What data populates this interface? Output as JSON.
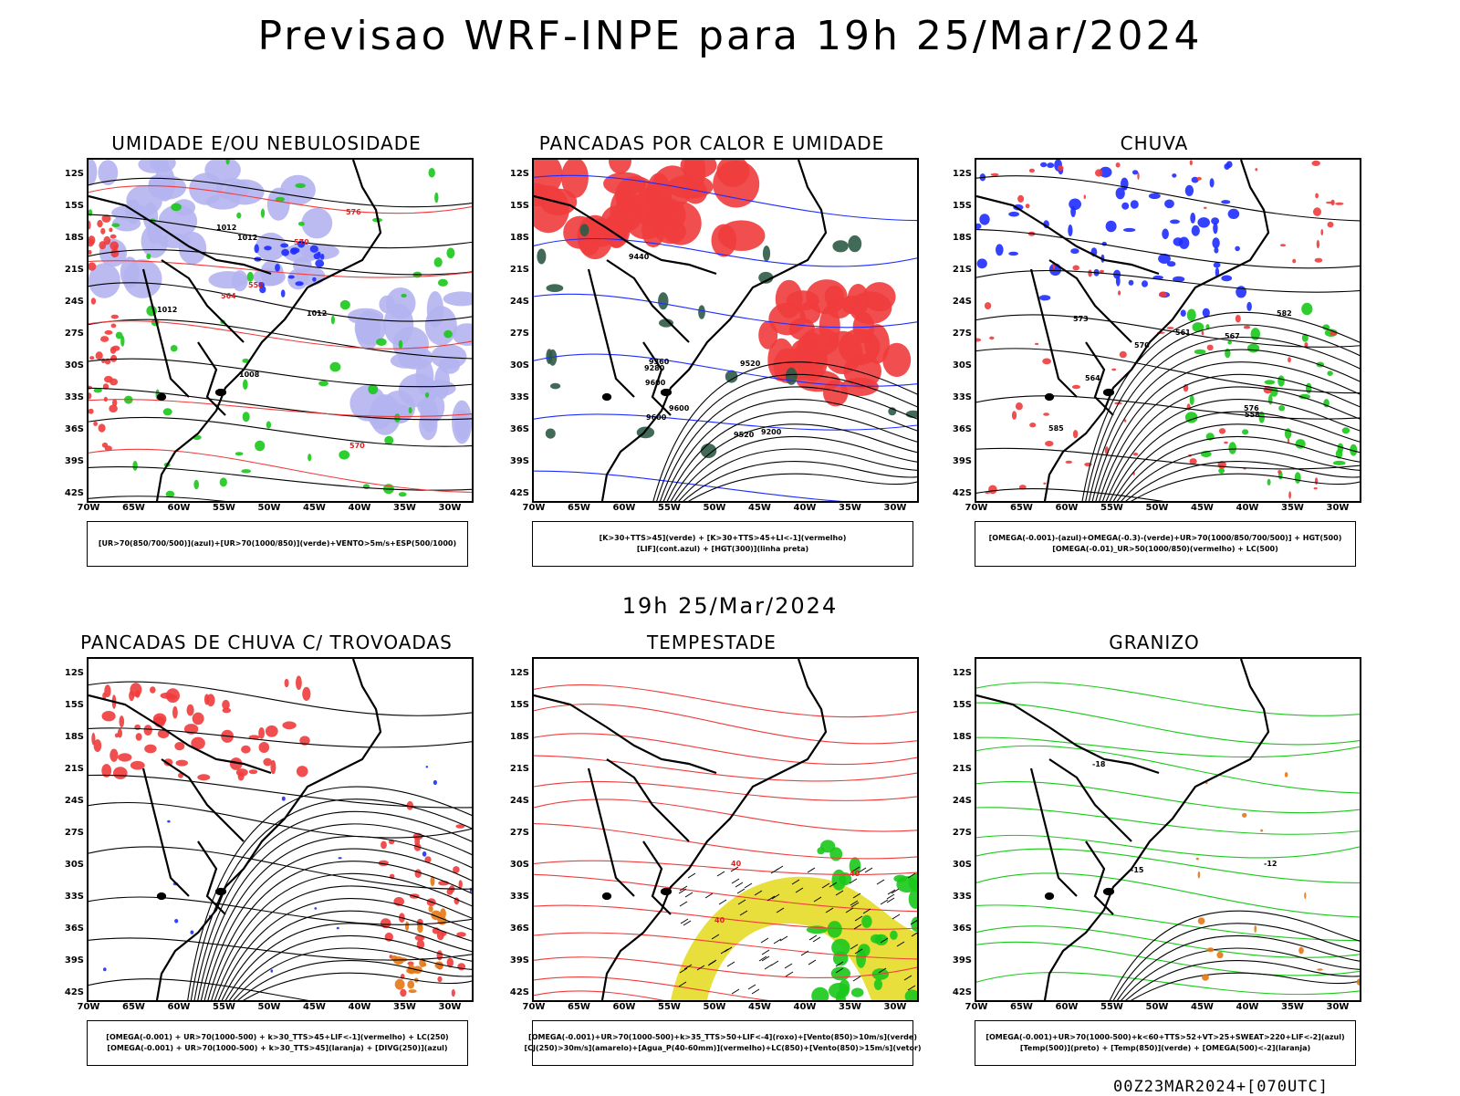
{
  "title": "Previsao WRF-INPE  para 19h 25/Mar/2024",
  "subtitle": "19h 25/Mar/2024",
  "footer": "00Z23MAR2024+[070UTC]",
  "axes": {
    "lat_labels": [
      "12S",
      "15S",
      "18S",
      "21S",
      "24S",
      "27S",
      "30S",
      "33S",
      "36S",
      "39S",
      "42S"
    ],
    "lon_labels": [
      "70W",
      "65W",
      "60W",
      "55W",
      "50W",
      "45W",
      "40W",
      "35W",
      "30W"
    ]
  },
  "colors": {
    "red": "#f03c3c",
    "blue": "#1e2dff",
    "green": "#19c819",
    "lavender": "#b4b4f0",
    "darkgreen": "#2d5a46",
    "yellow": "#e6dc28",
    "orange": "#e67814"
  },
  "panels": [
    {
      "title": "UMIDADE E/OU NEBULOSIDADE",
      "legend": [
        "[UR>70(850/700/500)](azul)+[UR>70(1000/850)](verde)+VENTO>5m/s+ESP(500/1000)"
      ],
      "contour_labels": [
        "1008",
        "1012",
        "1012",
        "1012",
        "1012",
        "570",
        "576",
        "564",
        "552",
        "570"
      ]
    },
    {
      "title": "PANCADAS POR CALOR E UMIDADE",
      "legend": [
        "[K>30+TTS>45](verde) + [K>30+TTS>45+LI<-1](vermelho)",
        "[LIF](cont.azul) + [HGT(300)](linha preta)"
      ],
      "contour_labels": [
        "9600",
        "9600",
        "9600",
        "9520",
        "9440",
        "9360",
        "9280",
        "9200",
        "9520"
      ]
    },
    {
      "title": "CHUVA",
      "legend": [
        "[OMEGA(-0.001)-(azul)+OMEGA(-0.3)-(verde)+UR>70(1000/850/700/500)] + HGT(500)",
        "[OMEGA(-0.01)_UR>50(1000/850)(vermelho) + LC(500)"
      ],
      "contour_labels": [
        "573",
        "570",
        "567",
        "564",
        "561",
        "558",
        "582",
        "576",
        "585"
      ]
    },
    {
      "title": "PANCADAS DE CHUVA C/ TROVOADAS",
      "legend": [
        "[OMEGA(-0.001) + UR>70(1000-500) + k>30_TTS>45+LIF<-1](vermelho) + LC(250)",
        "[OMEGA(-0.001) + UR>70(1000-500) + k>30_TTS>45](laranja) + [DIVG(250)](azul)"
      ],
      "contour_labels": []
    },
    {
      "title": "TEMPESTADE",
      "legend": [
        "[OMEGA(-0.001)+UR>70(1000-500)+k>35_TTS>50+LIF<-4](roxo)+[Vento(850)>10m/s](verde)",
        "[CJ(250)>30m/s](amarelo)+[Agua_P(40-60mm)](vermelho)+LC(850)+[Vento(850)>15m/s](vetor)"
      ],
      "contour_labels": [
        "40",
        "40",
        "40"
      ]
    },
    {
      "title": "GRANIZO",
      "legend": [
        "[OMEGA(-0.001)+UR>70(1000-500)+k<60+TTS>52+VT>25+SWEAT>220+LIF<-2](azul)",
        "[Temp(500)](preto) + [Temp(850)](verde) + [OMEGA(500)<-2](laranja)"
      ],
      "contour_labels": [
        "-12",
        "-15",
        "-18"
      ]
    }
  ]
}
